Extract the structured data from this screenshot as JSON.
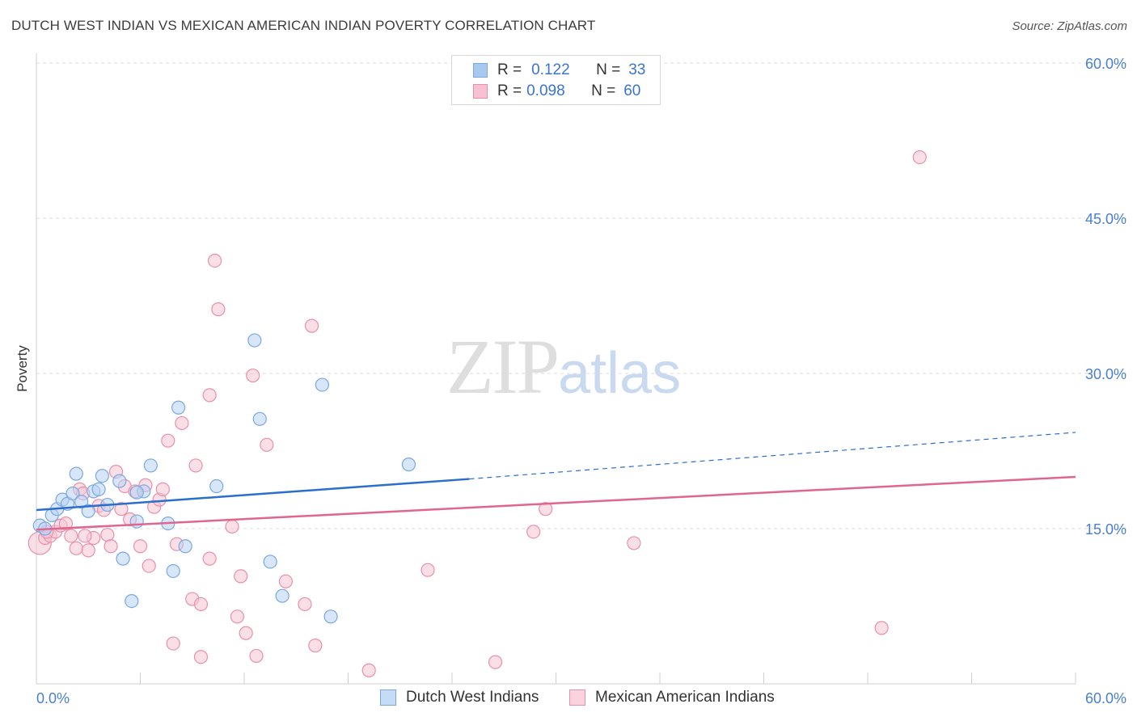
{
  "title": "DUTCH WEST INDIAN VS MEXICAN AMERICAN INDIAN POVERTY CORRELATION CHART",
  "source": "Source: ZipAtlas.com",
  "watermark": {
    "zip": "ZIP",
    "atlas": "atlas"
  },
  "legend_top": {
    "rows": [
      {
        "r_label": "R =",
        "r_value": "0.122",
        "n_label": "N =",
        "n_value": "33",
        "color": "#a8c8f0",
        "border": "#7aa8e0"
      },
      {
        "r_label": "R =",
        "r_value": "0.098",
        "n_label": "N =",
        "n_value": "60",
        "color": "#f8c0d0",
        "border": "#e890aa"
      }
    ]
  },
  "legend_bottom": [
    {
      "label": "Dutch West Indians",
      "color": "#c5dcf7",
      "border": "#7aa8e0"
    },
    {
      "label": "Mexican American Indians",
      "color": "#fbd3de",
      "border": "#e890aa"
    }
  ],
  "chart_data": {
    "type": "scatter",
    "ylabel": "Poverty",
    "xlabel": "",
    "xlim": [
      0,
      60
    ],
    "ylim": [
      0,
      60
    ],
    "x_tick_labels": [
      "0.0%",
      "60.0%"
    ],
    "y_ticks": [
      15,
      30,
      45,
      60
    ],
    "y_tick_labels": [
      "15.0%",
      "30.0%",
      "45.0%",
      "60.0%"
    ],
    "grid": "horizontal dashed",
    "series": [
      {
        "name": "Dutch West Indians",
        "color": "#7aa8e0",
        "fill": "#b7d2f4",
        "trend_color": "#2a6fcc",
        "trend": {
          "x0": 0,
          "y0": 16.8,
          "x1": 25,
          "y1": 19.8,
          "dash_x1": 60,
          "dash_y1": 24.3
        },
        "points": [
          [
            0.2,
            15.3
          ],
          [
            0.5,
            15.0
          ],
          [
            0.9,
            16.3
          ],
          [
            1.2,
            16.9
          ],
          [
            1.5,
            17.8
          ],
          [
            1.8,
            17.4
          ],
          [
            2.1,
            18.4
          ],
          [
            2.3,
            20.3
          ],
          [
            2.6,
            17.6
          ],
          [
            3.0,
            16.7
          ],
          [
            3.3,
            18.6
          ],
          [
            3.6,
            18.8
          ],
          [
            3.8,
            20.1
          ],
          [
            4.1,
            17.3
          ],
          [
            4.8,
            19.6
          ],
          [
            5.0,
            12.1
          ],
          [
            5.5,
            8.0
          ],
          [
            5.8,
            15.7
          ],
          [
            6.2,
            18.6
          ],
          [
            6.6,
            21.1
          ],
          [
            7.6,
            15.5
          ],
          [
            7.9,
            10.9
          ],
          [
            8.2,
            26.7
          ],
          [
            8.6,
            13.3
          ],
          [
            10.4,
            19.1
          ],
          [
            12.6,
            33.2
          ],
          [
            12.9,
            25.6
          ],
          [
            13.5,
            11.8
          ],
          [
            14.2,
            8.5
          ],
          [
            16.5,
            28.9
          ],
          [
            17.0,
            6.5
          ],
          [
            21.5,
            21.2
          ],
          [
            5.8,
            18.5
          ]
        ]
      },
      {
        "name": "Mexican American Indians",
        "color": "#e890aa",
        "fill": "#f7c4d3",
        "trend_color": "#e06690",
        "trend": {
          "x0": 0,
          "y0": 14.9,
          "x1": 60,
          "y1": 20.0
        },
        "points": [
          [
            0.2,
            13.6
          ],
          [
            0.5,
            14.1
          ],
          [
            0.8,
            14.3
          ],
          [
            1.1,
            14.7
          ],
          [
            1.4,
            15.3
          ],
          [
            1.7,
            15.5
          ],
          [
            2.0,
            14.3
          ],
          [
            2.3,
            13.1
          ],
          [
            2.5,
            18.8
          ],
          [
            2.7,
            18.4
          ],
          [
            3.0,
            12.9
          ],
          [
            3.3,
            14.1
          ],
          [
            3.6,
            17.2
          ],
          [
            3.9,
            16.8
          ],
          [
            4.1,
            14.4
          ],
          [
            4.3,
            13.3
          ],
          [
            4.6,
            20.5
          ],
          [
            4.9,
            16.9
          ],
          [
            5.1,
            19.1
          ],
          [
            5.4,
            15.9
          ],
          [
            5.7,
            18.6
          ],
          [
            6.0,
            13.3
          ],
          [
            6.3,
            19.2
          ],
          [
            6.5,
            11.4
          ],
          [
            6.8,
            17.1
          ],
          [
            7.1,
            17.8
          ],
          [
            7.3,
            18.8
          ],
          [
            7.6,
            23.5
          ],
          [
            7.9,
            3.9
          ],
          [
            8.1,
            13.5
          ],
          [
            8.4,
            25.2
          ],
          [
            9.0,
            8.2
          ],
          [
            9.2,
            21.1
          ],
          [
            9.5,
            2.6
          ],
          [
            9.5,
            7.7
          ],
          [
            10.0,
            27.9
          ],
          [
            10.3,
            40.9
          ],
          [
            10.5,
            36.2
          ],
          [
            10.0,
            12.1
          ],
          [
            11.3,
            15.2
          ],
          [
            11.6,
            6.5
          ],
          [
            11.8,
            10.4
          ],
          [
            12.1,
            4.9
          ],
          [
            12.5,
            29.8
          ],
          [
            12.7,
            2.7
          ],
          [
            13.3,
            23.1
          ],
          [
            14.4,
            9.9
          ],
          [
            15.5,
            7.7
          ],
          [
            15.9,
            34.6
          ],
          [
            16.1,
            3.7
          ],
          [
            19.2,
            1.3
          ],
          [
            22.6,
            11.0
          ],
          [
            26.5,
            2.1
          ],
          [
            28.7,
            14.7
          ],
          [
            29.4,
            16.9
          ],
          [
            34.5,
            13.6
          ],
          [
            48.8,
            5.4
          ],
          [
            51.0,
            50.9
          ],
          [
            0.6,
            14.7
          ],
          [
            2.8,
            14.3
          ]
        ]
      }
    ]
  }
}
